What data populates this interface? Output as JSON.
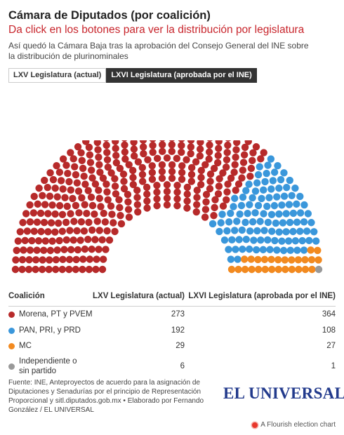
{
  "header": {
    "title": "Cámara de Diputados (por coalición)",
    "subtitle": "Da click en los botones para ver la distribución por legislatura",
    "intro": "Así quedó la Cámara Baja tras la aprobación del Consejo General del INE sobre la distribución de plurinominales"
  },
  "buttons": [
    {
      "label": "LXV Legislatura (actual)",
      "active": false
    },
    {
      "label": "LXVI Legislatura (aprobada por el INE)",
      "active": true
    }
  ],
  "chart_data": {
    "type": "parliament",
    "active_series": "LXVI Legislatura (aprobada por el INE)",
    "total_seats": 500,
    "columns": [
      "Coalición",
      "LXV Legislatura (actual)",
      "LXVI Legislatura (aprobada por el INE)"
    ],
    "parties": [
      {
        "name": "Morena, PT y PVEM",
        "color": "#b72a2a",
        "lxv": 273,
        "lxvi": 364
      },
      {
        "name": "PAN, PRI, y PRD",
        "color": "#3a97db",
        "lxv": 192,
        "lxvi": 108
      },
      {
        "name": "MC",
        "color": "#f28a20",
        "lxv": 29,
        "lxvi": 27
      },
      {
        "name": "Independiente o sin partido",
        "color": "#999999",
        "lxv": 6,
        "lxvi": 1
      }
    ]
  },
  "footer": {
    "source": "Fuente: INE, Anteproyectos de acuerdo para la asignación de Diputaciones y Senadurías por el principio de Representación Proporcional y sitl.diputados.gob.mx • Elaborado por Fernando González / EL UNIVERSAL",
    "logo": "EL UNIVERSAL",
    "flourish": "A Flourish election chart"
  }
}
